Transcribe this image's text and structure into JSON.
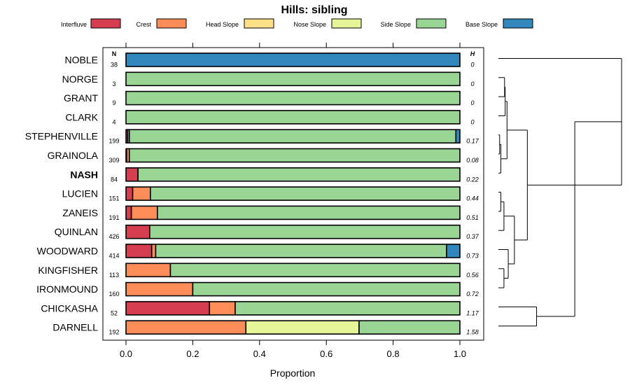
{
  "chart_data": {
    "type": "bar",
    "orientation": "horizontal",
    "stacked": true,
    "title": "Hills: sibling",
    "xlabel": "Proportion",
    "xlim": [
      0,
      1
    ],
    "x_ticks": [
      "0.0",
      "0.2",
      "0.4",
      "0.6",
      "0.8",
      "1.0"
    ],
    "n_header": "N",
    "h_header": "H",
    "legend": [
      {
        "name": "Interfluve",
        "color": "#d53e4f"
      },
      {
        "name": "Crest",
        "color": "#fc8d59"
      },
      {
        "name": "Head Slope",
        "color": "#fee08b"
      },
      {
        "name": "Nose Slope",
        "color": "#e6f598"
      },
      {
        "name": "Side Slope",
        "color": "#99d594"
      },
      {
        "name": "Base Slope",
        "color": "#3288bd"
      }
    ],
    "rows": [
      {
        "name": "NOBLE",
        "n": "38",
        "h": "0",
        "bold": false,
        "values": [
          0,
          0,
          0,
          0,
          0,
          1.0
        ]
      },
      {
        "name": "NORGE",
        "n": "3",
        "h": "0",
        "bold": false,
        "values": [
          0,
          0,
          0,
          0,
          1.0,
          0
        ]
      },
      {
        "name": "GRANT",
        "n": "9",
        "h": "0",
        "bold": false,
        "values": [
          0,
          0,
          0,
          0,
          1.0,
          0
        ]
      },
      {
        "name": "CLARK",
        "n": "4",
        "h": "0",
        "bold": false,
        "values": [
          0,
          0,
          0,
          0,
          1.0,
          0
        ]
      },
      {
        "name": "STEPHENVILLE",
        "n": "199",
        "h": "0.17",
        "bold": false,
        "values": [
          0.005,
          0.005,
          0,
          0,
          0.978,
          0.012
        ]
      },
      {
        "name": "GRAINOLA",
        "n": "309",
        "h": "0.08",
        "bold": false,
        "values": [
          0.002,
          0.008,
          0,
          0,
          0.99,
          0
        ]
      },
      {
        "name": "NASH",
        "n": "84",
        "h": "0.22",
        "bold": true,
        "values": [
          0.036,
          0,
          0,
          0,
          0.964,
          0
        ]
      },
      {
        "name": "LUCIEN",
        "n": "151",
        "h": "0.44",
        "bold": false,
        "values": [
          0.02,
          0.053,
          0,
          0,
          0.927,
          0
        ]
      },
      {
        "name": "ZANEIS",
        "n": "191",
        "h": "0.51",
        "bold": false,
        "values": [
          0.016,
          0.078,
          0,
          0,
          0.906,
          0
        ]
      },
      {
        "name": "QUINLAN",
        "n": "426",
        "h": "0.37",
        "bold": false,
        "values": [
          0.071,
          0,
          0,
          0,
          0.929,
          0
        ]
      },
      {
        "name": "WOODWARD",
        "n": "414",
        "h": "0.73",
        "bold": false,
        "values": [
          0.077,
          0.012,
          0,
          0,
          0.871,
          0.04
        ]
      },
      {
        "name": "KINGFISHER",
        "n": "113",
        "h": "0.56",
        "bold": false,
        "values": [
          0,
          0.133,
          0,
          0,
          0.867,
          0
        ]
      },
      {
        "name": "IRONMOUND",
        "n": "160",
        "h": "0.72",
        "bold": false,
        "values": [
          0,
          0.2,
          0,
          0,
          0.8,
          0
        ]
      },
      {
        "name": "CHICKASHA",
        "n": "52",
        "h": "1.17",
        "bold": false,
        "values": [
          0.25,
          0.077,
          0,
          0,
          0.673,
          0
        ]
      },
      {
        "name": "DARNELL",
        "n": "192",
        "h": "1.58",
        "bold": false,
        "values": [
          0,
          0.359,
          0,
          0.339,
          0.302,
          0
        ]
      }
    ],
    "dendrogram": {
      "merge_order_note": "hierarchical clustering of soil series by composition",
      "tree": [
        [
          [
            [
              "NOBLE"
            ],
            [
              [
                [
                  [
                    "NORGE",
                    "GRANT"
                  ],
                  "CLARK"
                ],
                [
                  [
                    "STEPHENVILLE",
                    "GRAINOLA"
                  ],
                  "NASH"
                ]
              ],
              [
                [
                  [
                    "LUCIEN",
                    "ZANEIS"
                  ],
                  "QUINLAN"
                ],
                [
                  "WOODWARD",
                  [
                    "KINGFISHER",
                    "IRONMOUND"
                  ]
                ]
              ]
            ]
          ]
        ],
        [
          "CHICKASHA",
          "DARNELL"
        ]
      ]
    }
  }
}
